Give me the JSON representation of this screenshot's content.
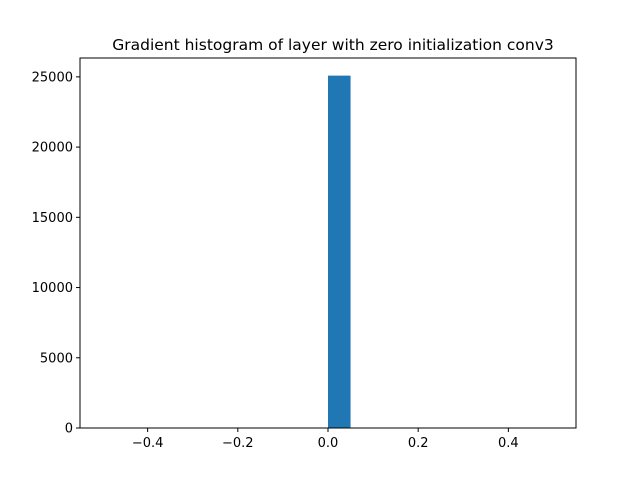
{
  "chart_data": {
    "type": "bar",
    "title": "Gradient histogram of layer with zero initialization conv3",
    "xlabel": "",
    "ylabel": "",
    "xlim": [
      -0.55,
      0.55
    ],
    "ylim": [
      0,
      26343
    ],
    "xticks": [
      -0.4,
      -0.2,
      0.0,
      0.2,
      0.4
    ],
    "xtick_labels": [
      "−0.4",
      "−0.2",
      "0.0",
      "0.2",
      "0.4"
    ],
    "yticks": [
      0,
      5000,
      10000,
      15000,
      20000,
      25000
    ],
    "ytick_labels": [
      "0",
      "5000",
      "10000",
      "15000",
      "20000",
      "25000"
    ],
    "bins": [
      {
        "x0": 0.0,
        "x1": 0.05,
        "value": 25088
      }
    ],
    "bar_color": "#1f77b4",
    "grid": false
  }
}
